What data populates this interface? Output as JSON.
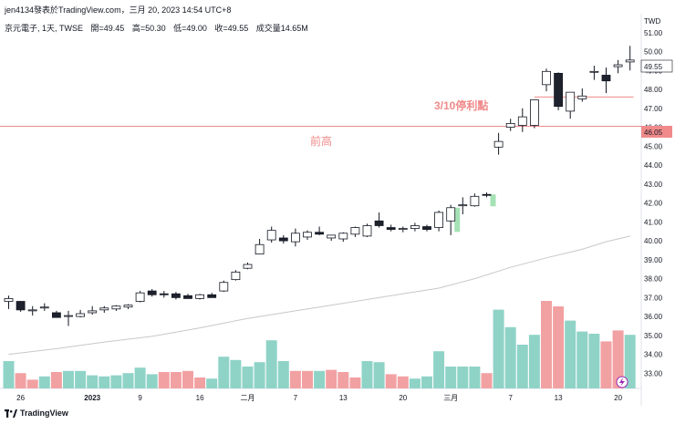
{
  "header": {
    "publish_line": "jen4134發表於TradingView.com，三月 20, 2023 14:54 UTC+8",
    "symbol": "京元電子, 1天, TWSE",
    "open": "開=49.45",
    "high": "高=50.30",
    "low": "低=49.00",
    "close": "收=49.55",
    "volume": "成交量14.65M"
  },
  "footer": {
    "logo_text": "TradingView"
  },
  "axis": {
    "currency": "TWD",
    "price_ticks": [
      "33.00",
      "34.00",
      "35.00",
      "36.00",
      "37.00",
      "38.00",
      "39.00",
      "40.00",
      "41.00",
      "42.00",
      "43.00",
      "44.00",
      "45.00",
      "46.00",
      "47.00",
      "48.00",
      "49.00",
      "50.00",
      "51.00"
    ],
    "x_ticks": [
      {
        "label": "26",
        "bar": 1
      },
      {
        "label": "2023",
        "bar": 7
      },
      {
        "label": "9",
        "bar": 11
      },
      {
        "label": "16",
        "bar": 16
      },
      {
        "label": "二月",
        "bar": 20
      },
      {
        "label": "7",
        "bar": 24
      },
      {
        "label": "13",
        "bar": 28
      },
      {
        "label": "20",
        "bar": 33
      },
      {
        "label": "三月",
        "bar": 37
      },
      {
        "label": "7",
        "bar": 42
      },
      {
        "label": "13",
        "bar": 46
      },
      {
        "label": "20",
        "bar": 51
      }
    ]
  },
  "annotations": {
    "prev_high_label": "前高",
    "prev_high_price": "46.05",
    "stop_label": "3/10停利點",
    "last_price": "49.55"
  },
  "colors": {
    "up": "#ffffff",
    "down": "#1e222d",
    "line": "#131722",
    "vol_up": "#8fd3c7",
    "vol_down": "#f2a1a3",
    "vol_dim": "#f7c7c8",
    "annot": "#f08a8a",
    "ma": "#c8c8c8",
    "hl_green": "#a5e2b5"
  },
  "chart_data": {
    "type": "candlestick",
    "ylim": [
      32.2,
      52.0
    ],
    "candles": [
      [
        36.8,
        37.1,
        36.4,
        36.95
      ],
      [
        36.8,
        36.8,
        36.25,
        36.35
      ],
      [
        36.3,
        36.55,
        36.05,
        36.35
      ],
      [
        36.45,
        36.7,
        36.3,
        36.5
      ],
      [
        36.2,
        36.3,
        35.95,
        35.95
      ],
      [
        36.05,
        36.3,
        35.5,
        36.05
      ],
      [
        36.0,
        36.35,
        35.95,
        36.15
      ],
      [
        36.2,
        36.55,
        36.1,
        36.3
      ],
      [
        36.35,
        36.55,
        36.2,
        36.45
      ],
      [
        36.4,
        36.6,
        36.3,
        36.55
      ],
      [
        36.5,
        36.65,
        36.4,
        36.6
      ],
      [
        36.8,
        37.35,
        36.75,
        37.25
      ],
      [
        37.35,
        37.45,
        37.05,
        37.15
      ],
      [
        37.2,
        37.35,
        37.0,
        37.15
      ],
      [
        37.2,
        37.3,
        36.9,
        37.0
      ],
      [
        37.1,
        37.2,
        36.95,
        36.95
      ],
      [
        36.95,
        37.2,
        36.9,
        37.15
      ],
      [
        37.15,
        37.25,
        37.0,
        37.0
      ],
      [
        37.35,
        37.9,
        37.3,
        37.8
      ],
      [
        37.95,
        38.45,
        37.9,
        38.35
      ],
      [
        38.55,
        38.85,
        38.5,
        38.75
      ],
      [
        39.3,
        40.1,
        39.3,
        39.8
      ],
      [
        40.05,
        40.75,
        39.9,
        40.55
      ],
      [
        40.15,
        40.3,
        39.85,
        40.0
      ],
      [
        39.95,
        40.65,
        39.7,
        40.4
      ],
      [
        40.2,
        40.55,
        40.05,
        40.45
      ],
      [
        40.45,
        40.75,
        40.3,
        40.35
      ],
      [
        40.15,
        40.3,
        40.0,
        40.3
      ],
      [
        40.1,
        40.45,
        39.95,
        40.4
      ],
      [
        40.35,
        40.75,
        40.2,
        40.7
      ],
      [
        40.25,
        40.9,
        40.2,
        40.8
      ],
      [
        41.05,
        41.5,
        40.7,
        40.8
      ],
      [
        40.7,
        40.85,
        40.5,
        40.6
      ],
      [
        40.6,
        40.75,
        40.45,
        40.65
      ],
      [
        40.65,
        40.95,
        40.5,
        40.8
      ],
      [
        40.75,
        40.85,
        40.5,
        40.6
      ],
      [
        40.7,
        41.6,
        40.5,
        41.5
      ],
      [
        41.05,
        41.9,
        40.3,
        41.75
      ],
      [
        41.85,
        42.3,
        41.4,
        41.9
      ],
      [
        41.85,
        42.5,
        41.8,
        42.35
      ],
      [
        42.45,
        42.55,
        42.3,
        42.4
      ],
      [
        44.95,
        45.7,
        44.55,
        45.25
      ],
      [
        46.0,
        46.45,
        45.8,
        46.2
      ],
      [
        46.1,
        47.0,
        45.75,
        46.55
      ],
      [
        46.1,
        47.45,
        45.95,
        47.45
      ],
      [
        48.25,
        49.1,
        47.9,
        48.95
      ],
      [
        48.85,
        48.9,
        46.9,
        47.1
      ],
      [
        46.85,
        47.8,
        46.45,
        47.85
      ],
      [
        47.5,
        48.05,
        47.35,
        47.65
      ],
      [
        48.95,
        49.25,
        48.5,
        48.95
      ],
      [
        48.75,
        49.15,
        47.8,
        48.45
      ],
      [
        49.2,
        49.55,
        48.85,
        49.3
      ],
      [
        49.45,
        50.3,
        49.0,
        49.55
      ]
    ],
    "volume_scale_max": 100,
    "volumes": [
      [
        25,
        "up"
      ],
      [
        14,
        "down"
      ],
      [
        8,
        "down"
      ],
      [
        11,
        "up"
      ],
      [
        15,
        "down"
      ],
      [
        16,
        "up"
      ],
      [
        16,
        "up"
      ],
      [
        12,
        "up"
      ],
      [
        11,
        "up"
      ],
      [
        12,
        "up"
      ],
      [
        14,
        "up"
      ],
      [
        19,
        "up"
      ],
      [
        13,
        "up"
      ],
      [
        15,
        "down"
      ],
      [
        15,
        "down"
      ],
      [
        16,
        "down"
      ],
      [
        10,
        "down"
      ],
      [
        9,
        "up"
      ],
      [
        29,
        "up"
      ],
      [
        26,
        "up"
      ],
      [
        20,
        "up"
      ],
      [
        24,
        "up"
      ],
      [
        44,
        "up"
      ],
      [
        25,
        "up"
      ],
      [
        16,
        "down"
      ],
      [
        16,
        "down"
      ],
      [
        16,
        "up"
      ],
      [
        17,
        "down"
      ],
      [
        15,
        "down"
      ],
      [
        10,
        "down"
      ],
      [
        25,
        "up"
      ],
      [
        24,
        "up"
      ],
      [
        13,
        "down"
      ],
      [
        11,
        "down"
      ],
      [
        9,
        "up"
      ],
      [
        11,
        "up"
      ],
      [
        34,
        "up"
      ],
      [
        20,
        "up"
      ],
      [
        20,
        "up"
      ],
      [
        20,
        "up"
      ],
      [
        14,
        "down"
      ],
      [
        72,
        "up"
      ],
      [
        56,
        "up"
      ],
      [
        40,
        "up"
      ],
      [
        49,
        "up"
      ],
      [
        80,
        "down"
      ],
      [
        75,
        "down"
      ],
      [
        62,
        "up"
      ],
      [
        52,
        "up"
      ],
      [
        50,
        "up"
      ],
      [
        43,
        "down"
      ],
      [
        53,
        "down"
      ],
      [
        49,
        "up"
      ]
    ],
    "ma_line": [
      [
        0,
        34.0
      ],
      [
        4,
        34.3
      ],
      [
        8,
        34.65
      ],
      [
        12,
        34.95
      ],
      [
        16,
        35.4
      ],
      [
        20,
        35.9
      ],
      [
        24,
        36.3
      ],
      [
        28,
        36.7
      ],
      [
        32,
        37.1
      ],
      [
        36,
        37.5
      ],
      [
        39,
        38.0
      ],
      [
        42,
        38.6
      ],
      [
        45,
        39.1
      ],
      [
        48,
        39.55
      ],
      [
        50,
        39.95
      ],
      [
        52,
        40.25
      ]
    ],
    "horizontal_lines": [
      {
        "price": 46.05,
        "start_bar": 0,
        "end_bar": "right",
        "label": "前高"
      },
      {
        "price": 47.6,
        "start_bar": 44,
        "end_bar": 52.3,
        "label": "3/10停利點"
      }
    ],
    "highlight_bars": [
      37,
      40
    ]
  }
}
